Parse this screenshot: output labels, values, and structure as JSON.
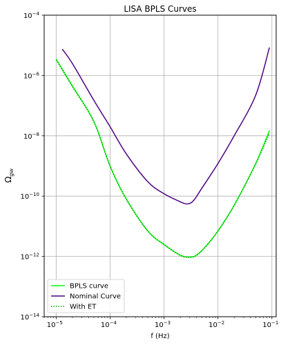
{
  "chart_data": {
    "type": "line",
    "title": "LISA BPLS Curves",
    "xlabel": "f (Hz)",
    "ylabel": "Ω",
    "ylabel_subscript": "gw",
    "x_scale": "log",
    "y_scale": "log",
    "xlim": [
      6e-06,
      0.12
    ],
    "ylim": [
      1e-14,
      0.0001
    ],
    "grid": true,
    "legend_position": "lower-left",
    "x_ticks": [
      {
        "value": 1e-05,
        "base": "10",
        "exp": "−5"
      },
      {
        "value": 0.0001,
        "base": "10",
        "exp": "−4"
      },
      {
        "value": 0.001,
        "base": "10",
        "exp": "−3"
      },
      {
        "value": 0.01,
        "base": "10",
        "exp": "−2"
      },
      {
        "value": 0.1,
        "base": "10",
        "exp": "−1"
      }
    ],
    "y_ticks": [
      {
        "value": 1e-14,
        "base": "10",
        "exp": "−14"
      },
      {
        "value": 1e-12,
        "base": "10",
        "exp": "−12"
      },
      {
        "value": 1e-10,
        "base": "10",
        "exp": "−10"
      },
      {
        "value": 1e-08,
        "base": "10",
        "exp": "−8"
      },
      {
        "value": 1e-06,
        "base": "10",
        "exp": "−6"
      },
      {
        "value": 0.0001,
        "base": "10",
        "exp": "−4"
      }
    ],
    "series": [
      {
        "name": "BPLS curve",
        "color": "#00ff00",
        "style": "solid",
        "x": [
          1e-05,
          2e-05,
          5e-05,
          0.0001,
          0.0002,
          0.0005,
          0.001,
          0.002,
          0.003,
          0.004,
          0.006,
          0.01,
          0.02,
          0.05,
          0.09
        ],
        "y": [
          3.5e-06,
          4.5e-07,
          3e-08,
          1e-09,
          8e-11,
          7e-12,
          2.5e-12,
          1.1e-12,
          9.5e-13,
          1.1e-12,
          2.2e-12,
          7e-12,
          5e-11,
          1.2e-09,
          1.5e-08
        ]
      },
      {
        "name": "Nominal Curve",
        "color": "#4b0082",
        "style": "solid",
        "x": [
          1.3e-05,
          2e-05,
          5e-05,
          0.0001,
          0.0002,
          0.0005,
          0.001,
          0.002,
          0.0027,
          0.0035,
          0.005,
          0.01,
          0.02,
          0.05,
          0.09
        ],
        "y": [
          7.5e-06,
          2.5e-06,
          1.5e-07,
          2e-08,
          2.5e-09,
          3e-10,
          1.2e-10,
          6.5e-11,
          5.5e-11,
          7e-11,
          1.8e-10,
          1.2e-09,
          1e-08,
          2.2e-07,
          8.5e-06
        ]
      },
      {
        "name": "With ET",
        "color": "#00a000",
        "style": "dotted",
        "x": [
          1e-05,
          2e-05,
          5e-05,
          0.0001,
          0.0002,
          0.0005,
          0.001,
          0.002,
          0.003,
          0.004,
          0.006,
          0.01,
          0.02,
          0.05,
          0.09
        ],
        "y": [
          3.3e-06,
          4.3e-07,
          2.9e-08,
          9.8e-10,
          7.8e-11,
          6.9e-12,
          2.45e-12,
          1.08e-12,
          9.3e-13,
          1.08e-12,
          2.15e-12,
          6.9e-12,
          4.9e-11,
          1.15e-09,
          1.2e-08
        ]
      }
    ]
  }
}
